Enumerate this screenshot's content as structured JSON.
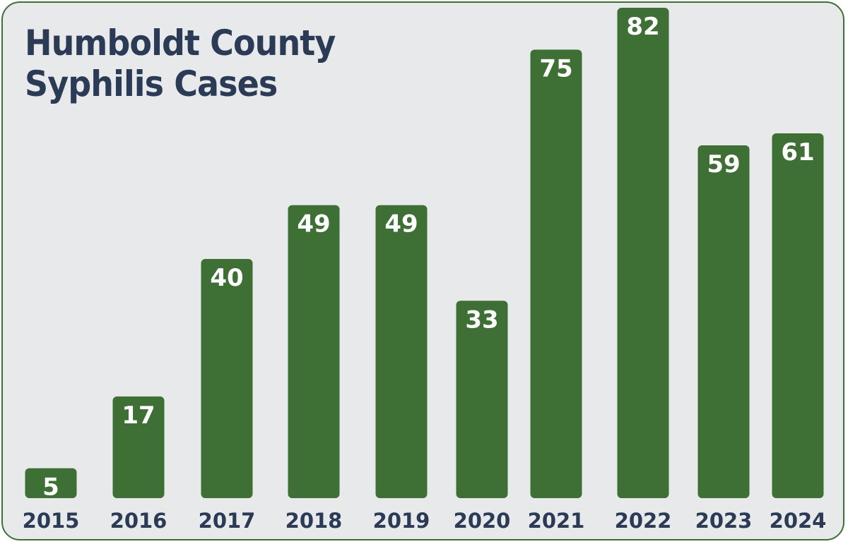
{
  "title_lines": [
    "Humboldt County",
    "Syphilis Cases"
  ],
  "colors": {
    "bar": "#3e6f35",
    "background": "#e8e9eb",
    "title": "#2b3b56",
    "value_text": "#ffffff"
  },
  "chart_data": {
    "type": "bar",
    "title": "Humboldt County Syphilis Cases",
    "categories": [
      "2015",
      "2016",
      "2017",
      "2018",
      "2019",
      "2020",
      "2021",
      "2022",
      "2023",
      "2024"
    ],
    "values": [
      5,
      17,
      40,
      49,
      49,
      33,
      75,
      82,
      59,
      61
    ],
    "xlabel": "",
    "ylabel": "",
    "ylim": [
      0,
      82
    ],
    "grid": false,
    "legend": "none",
    "data_labels": true
  }
}
